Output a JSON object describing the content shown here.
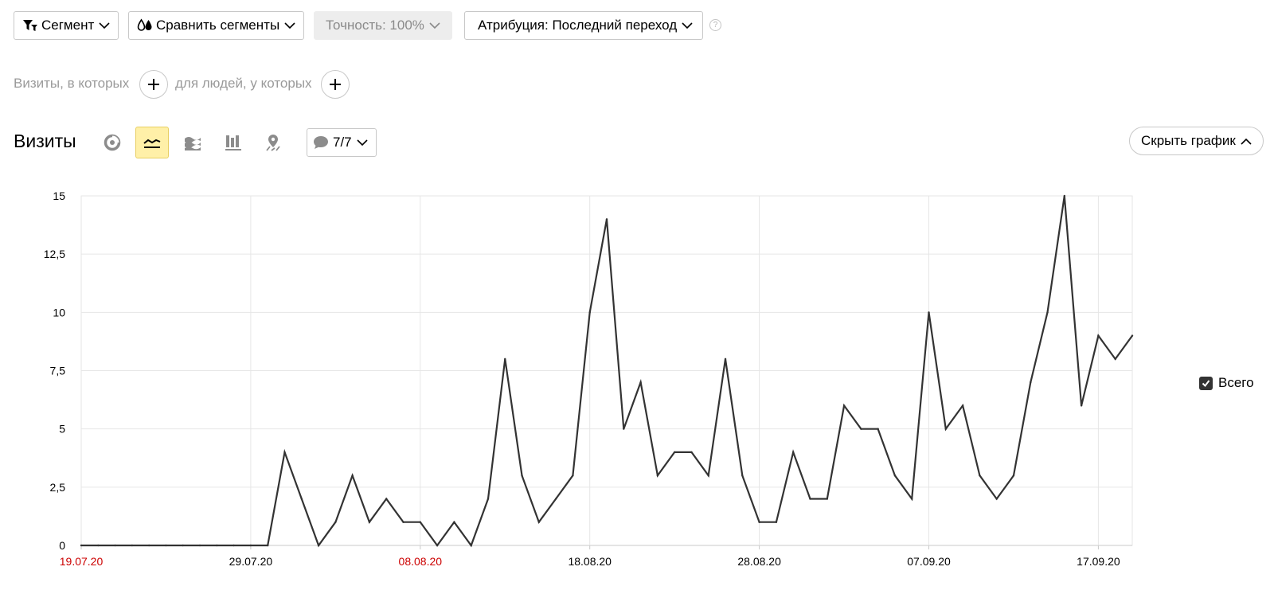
{
  "toolbar": {
    "segment_label": "Сегмент",
    "compare_label": "Сравнить сегменты",
    "accuracy_label": "Точность: 100%",
    "attribution_label": "Атрибуция: Последний переход",
    "help_symbol": "?"
  },
  "segment_builder": {
    "visits_label": "Визиты, в которых",
    "people_label": "для людей, у которых"
  },
  "report": {
    "title": "Визиты",
    "annotations_label": "7/7",
    "hide_chart_label": "Скрыть график",
    "active_view": "line"
  },
  "chart_data": {
    "type": "line",
    "title": "",
    "xlabel": "",
    "ylabel": "",
    "ylim": [
      0,
      15
    ],
    "yticks": [
      "0",
      "2,5",
      "5",
      "7,5",
      "10",
      "12,5",
      "15"
    ],
    "xticks": [
      {
        "label": "19.07.20",
        "index": 0,
        "weekend": true
      },
      {
        "label": "29.07.20",
        "index": 10,
        "weekend": false
      },
      {
        "label": "08.08.20",
        "index": 20,
        "weekend": true
      },
      {
        "label": "18.08.20",
        "index": 30,
        "weekend": false
      },
      {
        "label": "28.08.20",
        "index": 40,
        "weekend": false
      },
      {
        "label": "07.09.20",
        "index": 50,
        "weekend": false
      },
      {
        "label": "17.09.20",
        "index": 60,
        "weekend": false
      }
    ],
    "x_start": "19.07.20",
    "x_end": "19.09.20",
    "grid": true,
    "legend_position": "right",
    "series": [
      {
        "name": "Всего",
        "color": "#333333",
        "values": [
          0,
          0,
          0,
          0,
          0,
          0,
          0,
          0,
          0,
          0,
          0,
          0,
          4,
          2,
          0,
          1,
          3,
          1,
          2,
          1,
          1,
          0,
          1,
          0,
          2,
          8,
          3,
          1,
          2,
          3,
          10,
          14,
          5,
          7,
          3,
          4,
          4,
          3,
          8,
          3,
          1,
          1,
          4,
          2,
          2,
          6,
          5,
          5,
          3,
          2,
          10,
          5,
          6,
          3,
          2,
          3,
          7,
          10,
          15,
          6,
          9,
          8,
          9
        ]
      }
    ]
  }
}
